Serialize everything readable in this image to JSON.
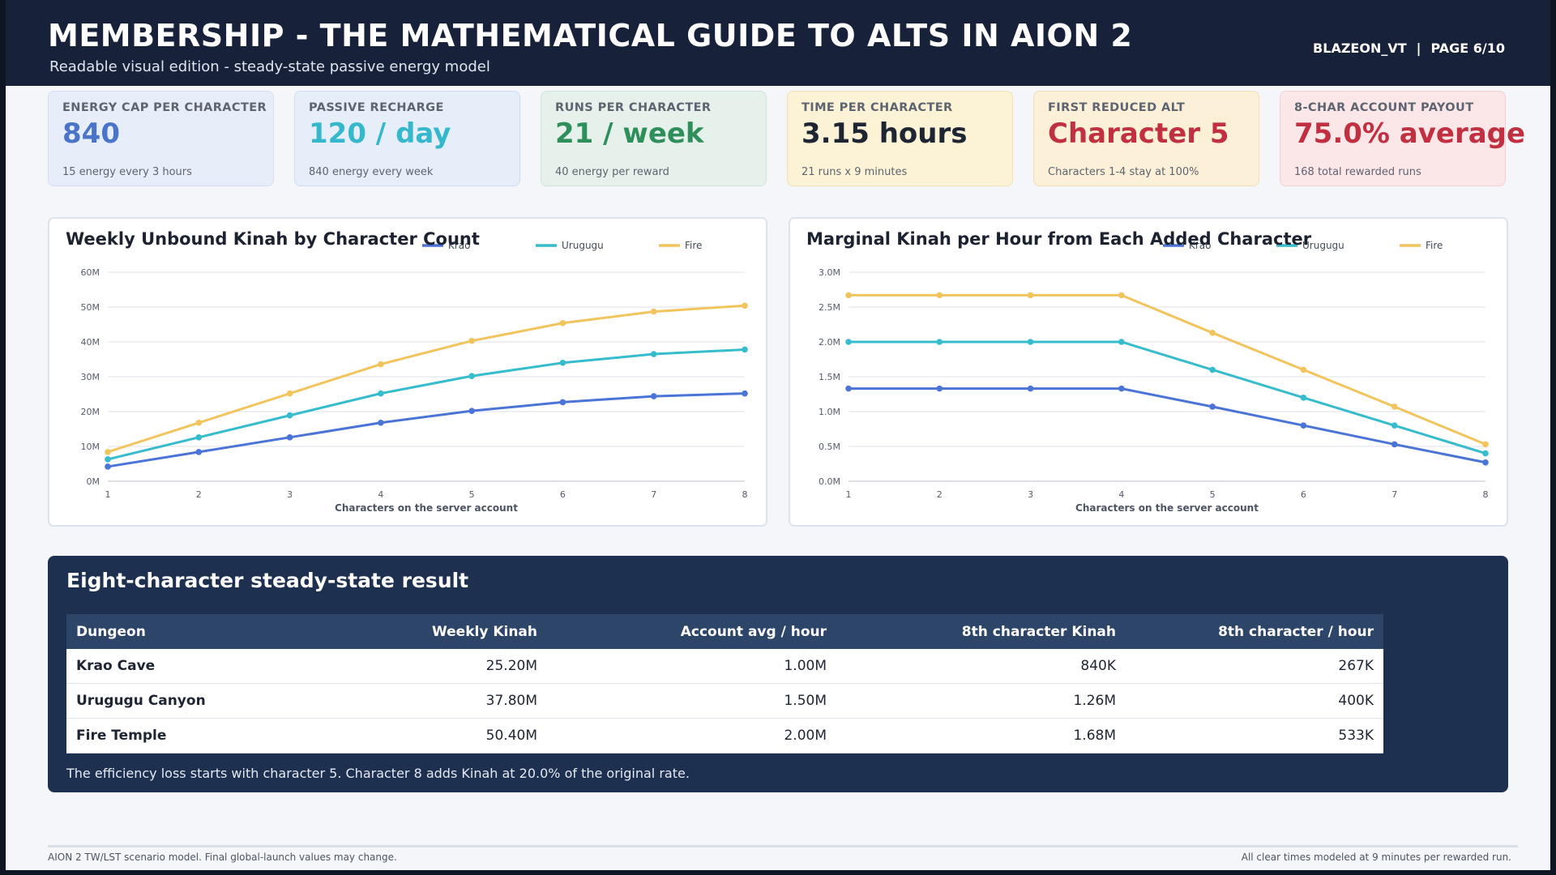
{
  "header": {
    "title": "MEMBERSHIP - THE MATHEMATICAL GUIDE TO ALTS IN AION 2",
    "subtitle": "Readable visual edition - steady-state passive energy model",
    "author": "BLAZEON_VT",
    "separator": "|",
    "page": "PAGE 6/10"
  },
  "cards": [
    {
      "label": "ENERGY CAP PER CHARACTER",
      "value": "840",
      "note": "15 energy every 3 hours",
      "bg": "#e8eef9",
      "border": "#d4def0",
      "color": "#4a74c7"
    },
    {
      "label": "PASSIVE RECHARGE",
      "value": "120 / day",
      "note": "840 energy every week",
      "bg": "#e5eef9",
      "border": "#cfdcef",
      "color": "#36b8cc"
    },
    {
      "label": "RUNS PER CHARACTER",
      "value": "21 / week",
      "note": "40 energy per reward",
      "bg": "#e7f1ec",
      "border": "#cfe3d7",
      "color": "#2f8f5b"
    },
    {
      "label": "TIME PER CHARACTER",
      "value": "3.15 hours",
      "note": "21 runs x 9 minutes",
      "bg": "#fcf2d6",
      "border": "#f0e2b4",
      "color": "#1e2533"
    },
    {
      "label": "FIRST REDUCED ALT",
      "value": "Character 5",
      "note": "Characters 1-4 stay at 100%",
      "bg": "#fcf0d8",
      "border": "#f0e0b8",
      "color": "#c03040"
    },
    {
      "label": "8-CHAR ACCOUNT PAYOUT",
      "value": "75.0% average",
      "note": "168 total rewarded runs",
      "bg": "#fbe6e8",
      "border": "#f0cfd3",
      "color": "#c03040"
    }
  ],
  "chart_data": [
    {
      "type": "line",
      "title": "Weekly Unbound Kinah by Character Count",
      "xlabel": "Characters on the server account",
      "ylabel": "",
      "x": [
        1,
        2,
        3,
        4,
        5,
        6,
        7,
        8
      ],
      "ylim": [
        0,
        60
      ],
      "yticks": [
        "0M",
        "10M",
        "20M",
        "30M",
        "40M",
        "50M",
        "60M"
      ],
      "grid": true,
      "legend_position": "top",
      "series": [
        {
          "name": "Krao",
          "color": "#4a74d6",
          "values": [
            4.2,
            8.4,
            12.6,
            16.8,
            20.2,
            22.7,
            24.4,
            25.2
          ]
        },
        {
          "name": "Urugugu",
          "color": "#36bccc",
          "values": [
            6.3,
            12.6,
            18.9,
            25.2,
            30.2,
            34.0,
            36.5,
            37.8
          ]
        },
        {
          "name": "Fire",
          "color": "#f2c45e",
          "values": [
            8.4,
            16.8,
            25.2,
            33.6,
            40.3,
            45.4,
            48.7,
            50.4
          ]
        }
      ]
    },
    {
      "type": "line",
      "title": "Marginal Kinah per Hour from Each Added Character",
      "xlabel": "Characters on the server account",
      "ylabel": "",
      "x": [
        1,
        2,
        3,
        4,
        5,
        6,
        7,
        8
      ],
      "ylim": [
        0,
        3.0
      ],
      "yticks": [
        "0.0M",
        "0.5M",
        "1.0M",
        "1.5M",
        "2.0M",
        "2.5M",
        "3.0M"
      ],
      "grid": true,
      "legend_position": "top",
      "series": [
        {
          "name": "Krao",
          "color": "#4a74d6",
          "values": [
            1.33,
            1.33,
            1.33,
            1.33,
            1.07,
            0.8,
            0.53,
            0.27
          ]
        },
        {
          "name": "Urugugu",
          "color": "#36bccc",
          "values": [
            2.0,
            2.0,
            2.0,
            2.0,
            1.6,
            1.2,
            0.8,
            0.4
          ]
        },
        {
          "name": "Fire",
          "color": "#f2c45e",
          "values": [
            2.67,
            2.67,
            2.67,
            2.67,
            2.13,
            1.6,
            1.07,
            0.53
          ]
        }
      ]
    }
  ],
  "result": {
    "title": "Eight-character steady-state result",
    "columns": [
      "Dungeon",
      "Weekly Kinah",
      "Account avg / hour",
      "8th character Kinah",
      "8th character / hour"
    ],
    "rows": [
      [
        "Krao Cave",
        "25.20M",
        "1.00M",
        "840K",
        "267K"
      ],
      [
        "Urugugu Canyon",
        "37.80M",
        "1.50M",
        "1.26M",
        "400K"
      ],
      [
        "Fire Temple",
        "50.40M",
        "2.00M",
        "1.68M",
        "533K"
      ]
    ],
    "note": "The efficiency loss starts with character 5. Character 8 adds Kinah at 20.0% of the original rate."
  },
  "footer": {
    "left": "AION 2 TW/LST scenario model. Final global-launch values may change.",
    "right": "All clear times modeled at 9 minutes per rewarded run."
  }
}
